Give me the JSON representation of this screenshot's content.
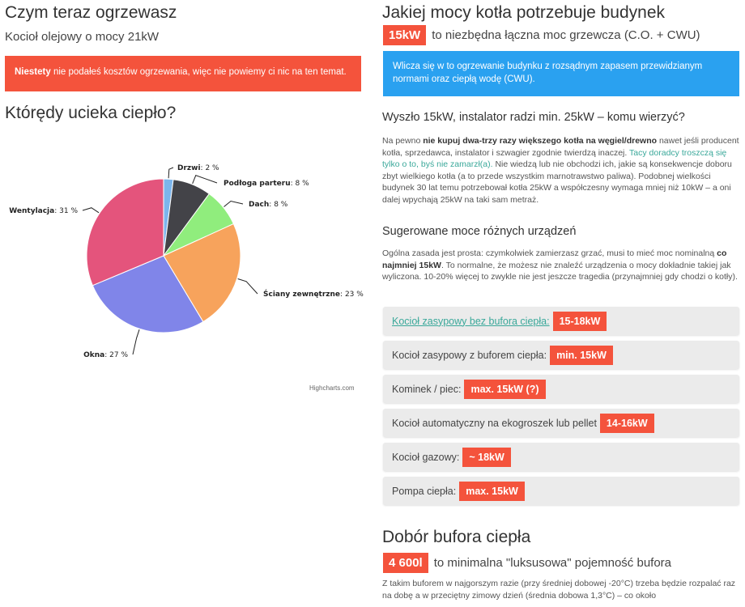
{
  "left": {
    "current_title": "Czym teraz ogrzewasz",
    "current_sub": "Kocioł olejowy o mocy 21kW",
    "warning_bold": "Niestety",
    "warning_text": " nie podałeś kosztów ogrzewania, więc nie powiemy ci nic na ten temat.",
    "loss_title": "Którędy ucieka ciepło?",
    "credit": "Highcharts.com"
  },
  "chart_data": {
    "type": "pie",
    "title": "",
    "slices": [
      {
        "name": "Drzwi",
        "value": 2,
        "label": "2 %",
        "color": "#7cb5ec"
      },
      {
        "name": "Podłoga parteru",
        "value": 8,
        "label": "8 %",
        "color": "#434348"
      },
      {
        "name": "Dach",
        "value": 8,
        "label": "8 %",
        "color": "#90ed7d"
      },
      {
        "name": "Ściany zewnętrzne",
        "value": 23,
        "label": "23 %",
        "color": "#f7a35c"
      },
      {
        "name": "Okna",
        "value": 27,
        "label": "27 %",
        "color": "#8085e9"
      },
      {
        "name": "Wentylacja",
        "value": 31,
        "label": "31 %",
        "color": "#e4547c"
      }
    ]
  },
  "right": {
    "power_title": "Jakiej mocy kotła potrzebuje budynek",
    "power_value": "15kW",
    "power_text": "to niezbędna łączna moc grzewcza (C.O. + CWU)",
    "info_text": "Wlicza się w to ogrzewanie budynku z rozsądnym zapasem przewidzianym normami oraz ciepłą wodę (CWU).",
    "question_title": "Wyszło 15kW, instalator radzi min. 25kW – komu wierzyć?",
    "p1_a": "Na pewno ",
    "p1_b": "nie kupuj dwa-trzy razy większego kotła na węgiel/drewno",
    "p1_c": " nawet jeśli producent kotła, sprzedawca, instalator i szwagier zgodnie twierdzą inaczej. ",
    "p1_green": "Tacy doradcy troszczą się tylko o to, byś nie zamarzł(a).",
    "p1_d": " Nie wiedzą lub nie obchodzi ich, jakie są konsekwencje doboru zbyt wielkiego kotła (a to przede wszystkim marnotrawstwo paliwa). Podobnej wielkości budynek 30 lat temu potrzebował kotła 25kW a współczesny wymaga mniej niż 10kW – a oni dalej wpychają 25kW na taki sam metraż.",
    "suggest_title": "Sugerowane moce różnych urządzeń",
    "p2_a": "Ogólna zasada jest prosta: czymkolwiek zamierzasz grzać, musi to mieć moc nominalną ",
    "p2_b": "co najmniej 15kW",
    "p2_c": ". To normalne, że możesz nie znaleźć urządzenia o mocy dokładnie takiej jak wyliczona. 10-20% więcej to zwykle nie jest jeszcze tragedia (przynajmniej gdy chodzi o kotły).",
    "devices": [
      {
        "label": "Kocioł zasypowy bez bufora ciepła:",
        "value": "15-18kW"
      },
      {
        "label": "Kocioł zasypowy z buforem ciepła:",
        "value": "min. 15kW"
      },
      {
        "label": "Kominek / piec:",
        "value": "max. 15kW (?)"
      },
      {
        "label": "Kocioł automatyczny na ekogroszek lub pellet",
        "value": "14-16kW"
      },
      {
        "label": "Kocioł gazowy:",
        "value": "~ 18kW"
      },
      {
        "label": "Pompa ciepła:",
        "value": "max. 15kW"
      }
    ],
    "buffer_title": "Dobór bufora ciepła",
    "buffer_value": "4 600l",
    "buffer_text": "to minimalna \"luksusowa\" pojemność bufora",
    "p3": "Z takim buforem w najgorszym razie (przy średniej dobowej -20°C) trzeba będzie rozpalać raz na dobę a w przeciętny zimowy dzień (średnia dobowa 1,3°C) – co około"
  }
}
